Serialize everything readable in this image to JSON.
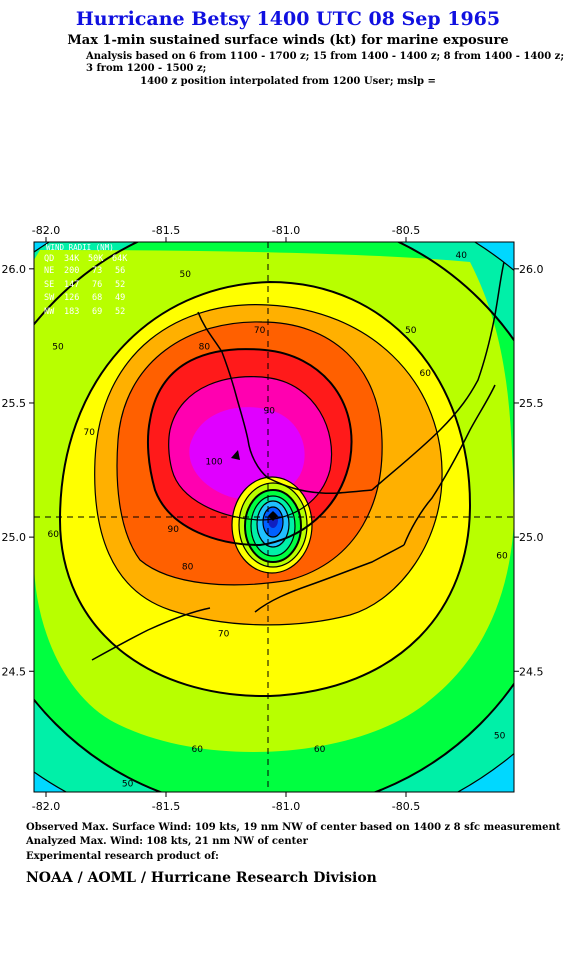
{
  "header": {
    "title": "Hurricane Betsy 1400 UTC 08 Sep 1965",
    "subtitle": "Max 1-min sustained surface winds (kt) for marine exposure",
    "analysis_lines": [
      "Analysis based on  6 from 1100 - 1700 z;  15 from 1400 - 1400 z;  8 from 1400 - 1400 z;",
      " 3 from 1200 - 1500 z;"
    ],
    "interp_line": "1400 z position interpolated from 1200 User; mslp ="
  },
  "wind_radii": {
    "title": "WIND RADII (NM)",
    "header": [
      "QD",
      "34K",
      "50K",
      "64K"
    ],
    "rows": [
      [
        "NE",
        "200",
        "73",
        "56"
      ],
      [
        "SE",
        "147",
        "76",
        "52"
      ],
      [
        "SW",
        "126",
        "68",
        "49"
      ],
      [
        "NW",
        "183",
        "69",
        "52"
      ]
    ]
  },
  "footer": {
    "observed": "Observed Max. Surface Wind: 109 kts, 19 nm NW of center based on 1400 z 8 sfc measurement",
    "analyzed": "Analyzed Max. Wind: 108 kts, 21 nm NW of center",
    "experimental": "Experimental research product of:",
    "org": "NOAA / AOML / Hurricane Research Division"
  },
  "chart_data": {
    "type": "heatmap",
    "title": "Max 1-min sustained surface winds (kt)",
    "xlim": [
      -82.05,
      -80.05
    ],
    "ylim": [
      24.05,
      26.1
    ],
    "x_ticks": [
      -82.0,
      -81.5,
      -81.0,
      -80.5
    ],
    "x_tick_labels": [
      "-82.0",
      "-81.5",
      "-81.0",
      "-80.5"
    ],
    "y_ticks": [
      24.5,
      25.0,
      25.5,
      26.0
    ],
    "y_tick_labels": [
      "24.5",
      "25.0",
      "25.5",
      "26.0"
    ],
    "center": {
      "lon": -81.03,
      "lat": 25.07
    },
    "contour_labels": [
      {
        "text": "40",
        "lon": -80.27,
        "lat": 26.04
      },
      {
        "text": "50",
        "lon": -81.42,
        "lat": 25.97
      },
      {
        "text": "50",
        "lon": -80.48,
        "lat": 25.76
      },
      {
        "text": "60",
        "lon": -80.42,
        "lat": 25.6
      },
      {
        "text": "50",
        "lon": -81.95,
        "lat": 25.7
      },
      {
        "text": "70",
        "lon": -81.11,
        "lat": 25.76
      },
      {
        "text": "80",
        "lon": -81.34,
        "lat": 25.7
      },
      {
        "text": "70",
        "lon": -81.82,
        "lat": 25.38
      },
      {
        "text": "90",
        "lon": -81.07,
        "lat": 25.46
      },
      {
        "text": "100",
        "lon": -81.3,
        "lat": 25.27
      },
      {
        "text": "90",
        "lon": -81.47,
        "lat": 25.02
      },
      {
        "text": "80",
        "lon": -81.41,
        "lat": 24.88
      },
      {
        "text": "60",
        "lon": -81.97,
        "lat": 25.0
      },
      {
        "text": "70",
        "lon": -81.26,
        "lat": 24.63
      },
      {
        "text": "60",
        "lon": -80.1,
        "lat": 24.92
      },
      {
        "text": "60",
        "lon": -81.37,
        "lat": 24.2
      },
      {
        "text": "60",
        "lon": -80.86,
        "lat": 24.2
      },
      {
        "text": "50",
        "lon": -80.11,
        "lat": 24.25
      },
      {
        "text": "50",
        "lon": -81.66,
        "lat": 24.07
      }
    ],
    "grid": false,
    "colors": [
      "#00d8ff",
      "#00f0a8",
      "#00ff40",
      "#b8ff00",
      "#ffff00",
      "#ffb000",
      "#ff6000",
      "#ff1a1a",
      "#ff00b0",
      "#e000ff",
      "#20c0ff",
      "#0060ff"
    ]
  }
}
